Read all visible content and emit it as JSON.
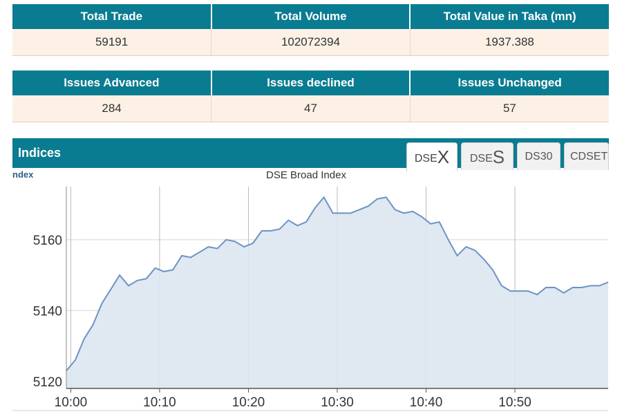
{
  "market_summary": {
    "headers": [
      "Total Trade",
      "Total Volume",
      "Total Value in Taka (mn)"
    ],
    "values": [
      "59191",
      "102072394",
      "1937.388"
    ]
  },
  "issues_summary": {
    "headers": [
      "Issues Advanced",
      "Issues declined",
      "Issues Unchanged"
    ],
    "values": [
      "284",
      "47",
      "57"
    ]
  },
  "indices": {
    "title": "Indices",
    "subhead": "ndex",
    "tabs": [
      {
        "prefix": "DSE",
        "big": "X",
        "active": true
      },
      {
        "prefix": "DSE",
        "big": "S",
        "active": false
      },
      {
        "prefix": "DS30",
        "big": "",
        "active": false
      },
      {
        "prefix": "CDSET",
        "big": "",
        "active": false
      }
    ]
  },
  "colors": {
    "header_bg": "#0a7c91",
    "cell_bg": "#fdf1e6",
    "line": "#6a93c4",
    "area": "#dde5f0"
  },
  "chart_data": {
    "type": "area",
    "title": "DSE Broad Index",
    "xlabel": "",
    "ylabel": "",
    "x_ticks": [
      "10:00",
      "10:10",
      "10:20",
      "10:30",
      "10:40",
      "10:50"
    ],
    "y_ticks": [
      5120,
      5140,
      5160
    ],
    "xlim": [
      -0.5,
      60.5
    ],
    "ylim": [
      5118,
      5175
    ],
    "grid": true,
    "series": [
      {
        "x": [
          -0.5,
          0.5,
          1.5,
          2.5,
          3.5,
          4.5,
          5.5,
          6.5,
          7.5,
          8.5,
          9.5,
          10.5,
          11.5,
          12.5,
          13.5,
          14.5,
          15.5,
          16.5,
          17.5,
          18.5,
          19.5,
          20.5,
          21.5,
          22.5,
          23.5,
          24.5,
          25.5,
          26.5,
          27.5,
          28.5,
          29.5,
          30.5,
          31.5,
          32.5,
          33.5,
          34.5,
          35.5,
          36.5,
          37.5,
          38.5,
          39.5,
          40.5,
          41.5,
          42.5,
          43.5,
          44.5,
          45.5,
          46.5,
          47.5,
          48.5,
          49.5,
          50.5,
          51.5,
          52.5,
          53.5,
          54.5,
          55.5,
          56.5,
          57.5,
          58.5,
          59.5,
          60.5
        ],
        "values": [
          5123,
          5126,
          5132,
          5136,
          5142,
          5146,
          5150,
          5147,
          5148.5,
          5149,
          5152,
          5151,
          5151.5,
          5155.5,
          5155,
          5156.5,
          5158,
          5157.5,
          5160,
          5159.5,
          5158,
          5159,
          5162.5,
          5162.5,
          5163,
          5165.5,
          5164,
          5165,
          5169,
          5172,
          5167.5,
          5167.5,
          5167.5,
          5168.5,
          5169.5,
          5171.5,
          5172,
          5168.5,
          5167.5,
          5168,
          5166.5,
          5164.5,
          5165,
          5160,
          5155.5,
          5158,
          5157,
          5154.5,
          5151.5,
          5147,
          5145.5,
          5145.5,
          5145.5,
          5144.5,
          5146.5,
          5146.5,
          5145,
          5146.5,
          5146.5,
          5147,
          5147,
          5148
        ]
      }
    ]
  }
}
